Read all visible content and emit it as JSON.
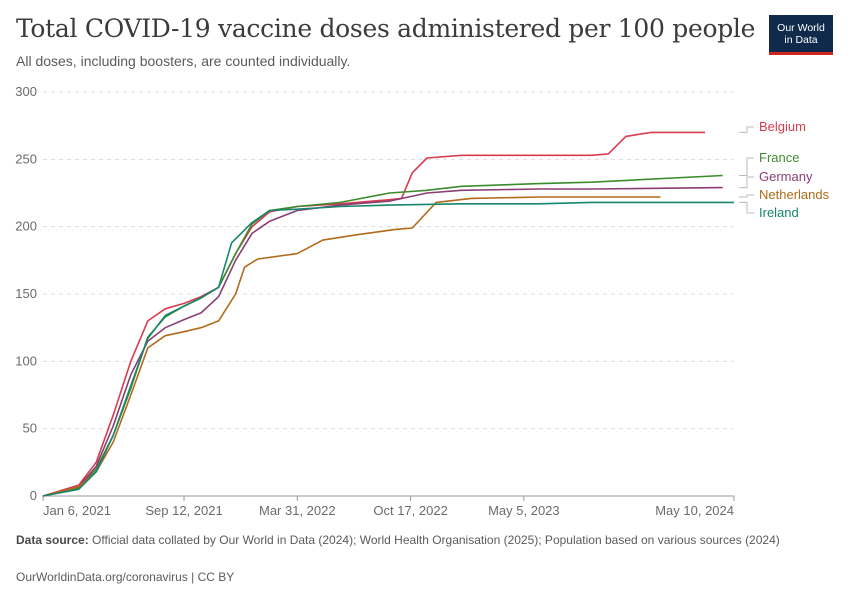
{
  "header": {
    "title": "Total COVID-19 vaccine doses administered per 100 people",
    "subtitle": "All doses, including boosters, are counted individually.",
    "logo_line1": "Our World",
    "logo_line2": "in Data"
  },
  "footer": {
    "source_label": "Data source:",
    "source_text": "Official data collated by Our World in Data (2024); World Health Organisation (2025); Population based on various sources (2024)",
    "link_text": "OurWorldinData.org/coronavirus | CC BY"
  },
  "chart_data": {
    "type": "line",
    "title": "Total COVID-19 vaccine doses administered per 100 people",
    "subtitle": "All doses, including boosters, are counted individually.",
    "x_type": "date",
    "x_ticks": [
      "Jan 6, 2021",
      "Sep 12, 2021",
      "Mar 31, 2022",
      "Oct 17, 2022",
      "May 5, 2023",
      "May 10, 2024"
    ],
    "xlim": [
      "2021-01-06",
      "2024-05-10"
    ],
    "ylim": [
      0,
      300
    ],
    "y_ticks": [
      0,
      50,
      100,
      150,
      200,
      250,
      300
    ],
    "grid": "horizontal dashed",
    "legend": "right, labels at line ends",
    "series": [
      {
        "name": "Belgium",
        "color": "#d73c50",
        "points": [
          [
            "2021-01-06",
            0
          ],
          [
            "2021-03-10",
            8
          ],
          [
            "2021-04-10",
            25
          ],
          [
            "2021-05-10",
            60
          ],
          [
            "2021-06-10",
            100
          ],
          [
            "2021-07-10",
            130
          ],
          [
            "2021-08-10",
            139
          ],
          [
            "2021-09-12",
            143
          ],
          [
            "2021-10-12",
            148
          ],
          [
            "2021-11-12",
            155
          ],
          [
            "2021-12-12",
            180
          ],
          [
            "2022-01-10",
            200
          ],
          [
            "2022-02-10",
            211
          ],
          [
            "2022-03-31",
            215
          ],
          [
            "2022-06-15",
            217
          ],
          [
            "2022-09-10",
            220
          ],
          [
            "2022-10-01",
            221
          ],
          [
            "2022-10-20",
            240
          ],
          [
            "2022-11-15",
            251
          ],
          [
            "2023-01-15",
            253
          ],
          [
            "2023-06-01",
            253
          ],
          [
            "2023-09-01",
            253
          ],
          [
            "2023-10-01",
            254
          ],
          [
            "2023-11-01",
            267
          ],
          [
            "2023-12-15",
            270
          ],
          [
            "2024-03-20",
            270
          ]
        ]
      },
      {
        "name": "France",
        "color": "#3c8c2d",
        "points": [
          [
            "2021-01-06",
            0
          ],
          [
            "2021-03-10",
            6
          ],
          [
            "2021-04-10",
            20
          ],
          [
            "2021-05-10",
            45
          ],
          [
            "2021-06-10",
            80
          ],
          [
            "2021-07-10",
            118
          ],
          [
            "2021-08-10",
            133
          ],
          [
            "2021-09-12",
            141
          ],
          [
            "2021-10-12",
            147
          ],
          [
            "2021-11-12",
            155
          ],
          [
            "2021-12-12",
            180
          ],
          [
            "2022-01-10",
            202
          ],
          [
            "2022-02-10",
            212
          ],
          [
            "2022-03-31",
            215
          ],
          [
            "2022-06-15",
            218
          ],
          [
            "2022-09-10",
            225
          ],
          [
            "2022-11-15",
            227
          ],
          [
            "2023-01-15",
            230
          ],
          [
            "2023-06-01",
            232
          ],
          [
            "2023-09-01",
            233
          ],
          [
            "2024-04-20",
            238
          ]
        ]
      },
      {
        "name": "Germany",
        "color": "#883f73",
        "points": [
          [
            "2021-01-06",
            0
          ],
          [
            "2021-03-10",
            7
          ],
          [
            "2021-04-10",
            22
          ],
          [
            "2021-05-10",
            52
          ],
          [
            "2021-06-10",
            90
          ],
          [
            "2021-07-10",
            115
          ],
          [
            "2021-08-10",
            125
          ],
          [
            "2021-09-12",
            131
          ],
          [
            "2021-10-12",
            136
          ],
          [
            "2021-11-12",
            148
          ],
          [
            "2021-12-12",
            175
          ],
          [
            "2022-01-10",
            195
          ],
          [
            "2022-02-10",
            204
          ],
          [
            "2022-03-31",
            212
          ],
          [
            "2022-06-15",
            216
          ],
          [
            "2022-09-10",
            219
          ],
          [
            "2022-11-15",
            225
          ],
          [
            "2023-01-15",
            227
          ],
          [
            "2023-06-01",
            228
          ],
          [
            "2023-09-01",
            228
          ],
          [
            "2024-04-20",
            229
          ]
        ]
      },
      {
        "name": "Netherlands",
        "color": "#b26a1a",
        "points": [
          [
            "2021-01-06",
            0
          ],
          [
            "2021-03-10",
            7
          ],
          [
            "2021-04-10",
            18
          ],
          [
            "2021-05-10",
            40
          ],
          [
            "2021-06-10",
            75
          ],
          [
            "2021-07-10",
            110
          ],
          [
            "2021-08-10",
            119
          ],
          [
            "2021-09-12",
            122
          ],
          [
            "2021-10-12",
            125
          ],
          [
            "2021-11-12",
            130
          ],
          [
            "2021-12-12",
            150
          ],
          [
            "2021-12-28",
            170
          ],
          [
            "2022-01-20",
            176
          ],
          [
            "2022-03-31",
            180
          ],
          [
            "2022-05-15",
            190
          ],
          [
            "2022-07-15",
            194
          ],
          [
            "2022-09-20",
            198
          ],
          [
            "2022-10-20",
            199
          ],
          [
            "2022-12-01",
            218
          ],
          [
            "2023-02-01",
            221
          ],
          [
            "2023-06-01",
            222
          ],
          [
            "2024-01-01",
            222
          ]
        ]
      },
      {
        "name": "Ireland",
        "color": "#18866d",
        "points": [
          [
            "2021-01-06",
            0
          ],
          [
            "2021-03-10",
            5
          ],
          [
            "2021-04-10",
            18
          ],
          [
            "2021-05-10",
            45
          ],
          [
            "2021-06-10",
            82
          ],
          [
            "2021-07-10",
            117
          ],
          [
            "2021-08-10",
            134
          ],
          [
            "2021-09-12",
            141
          ],
          [
            "2021-10-12",
            147
          ],
          [
            "2021-11-12",
            155
          ],
          [
            "2021-12-05",
            188
          ],
          [
            "2022-01-10",
            203
          ],
          [
            "2022-02-10",
            212
          ],
          [
            "2022-03-31",
            213
          ],
          [
            "2022-06-15",
            215
          ],
          [
            "2022-09-10",
            216
          ],
          [
            "2023-01-15",
            217
          ],
          [
            "2023-06-01",
            217
          ],
          [
            "2023-09-01",
            218
          ],
          [
            "2024-05-10",
            218
          ]
        ]
      }
    ]
  }
}
